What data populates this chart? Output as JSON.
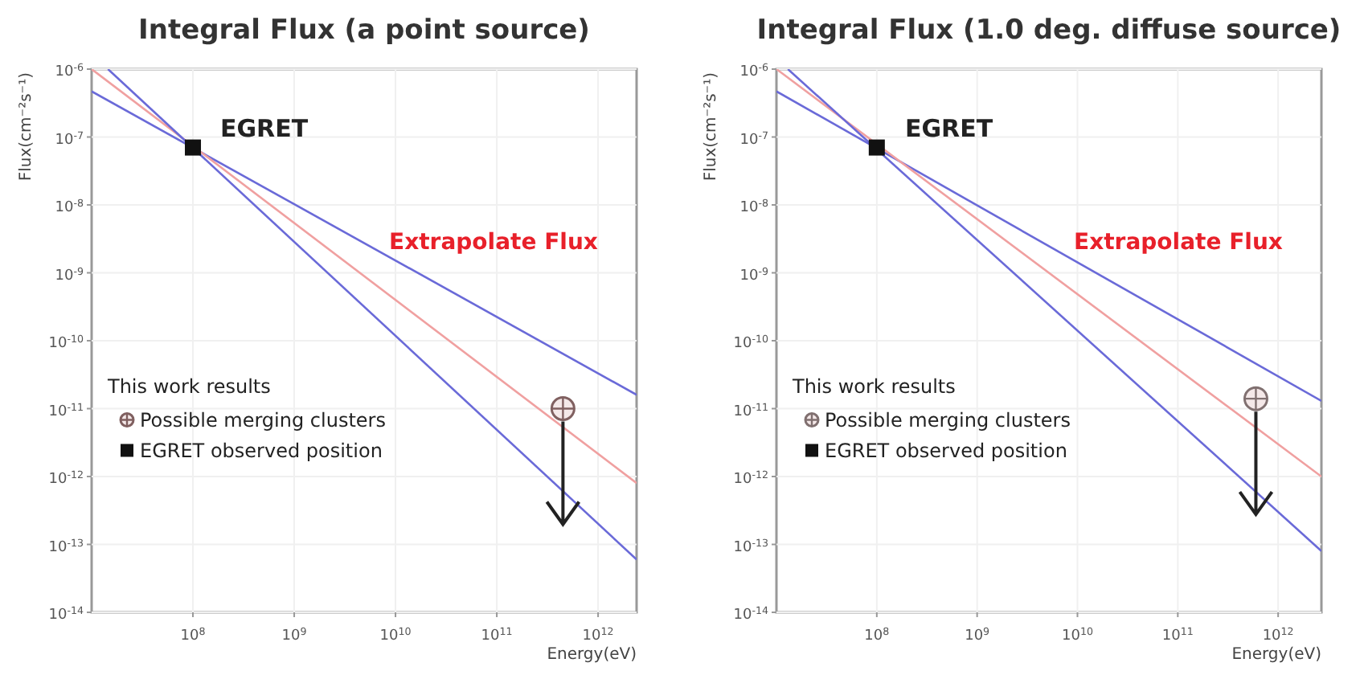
{
  "chart_data": [
    {
      "type": "line",
      "title": "Integral Flux (a point source)",
      "xlabel": "Energy(eV)",
      "ylabel": "Flux(cm⁻²s⁻¹)",
      "log": "xy",
      "grid": true,
      "legend": "left",
      "legend_title": "This work results",
      "xlim": [
        10000000.0,
        2400000000000.0
      ],
      "ylim": [
        1e-14,
        1e-06
      ],
      "xticks": [
        {
          "value": 100000000.0,
          "label": "10$^{8}$"
        },
        {
          "value": 1000000000.0,
          "label": "10$^{9}$"
        },
        {
          "value": 10000000000.0,
          "label": "10$^{10}$"
        },
        {
          "value": 100000000000.0,
          "label": "10$^{11}$"
        },
        {
          "value": 1000000000000.0,
          "label": "10$^{12}$"
        }
      ],
      "yticks": [
        {
          "value": 1e-06,
          "label": "10$^{-6}$"
        },
        {
          "value": 1e-07,
          "label": "10$^{-7}$"
        },
        {
          "value": 1e-08,
          "label": "10$^{-8}$"
        },
        {
          "value": 1e-09,
          "label": "10$^{-9}$"
        },
        {
          "value": 1e-10,
          "label": "10$^{-10}$"
        },
        {
          "value": 1e-11,
          "label": "10$^{-11}$"
        },
        {
          "value": 1e-12,
          "label": "10$^{-12}$"
        },
        {
          "value": 1e-13,
          "label": "10$^{-13}$"
        },
        {
          "value": 1e-14,
          "label": "10$^{-14}$"
        }
      ],
      "series": [
        {
          "type": "line",
          "color": "#6a6ad8",
          "x": [
            10000000.0,
            2400000000000.0
          ],
          "values": [
            4.7e-07,
            1.6e-11
          ]
        },
        {
          "type": "line",
          "color": "#f0a0a0",
          "x": [
            10000000.0,
            2400000000000.0
          ],
          "values": [
            1e-06,
            8e-13
          ]
        },
        {
          "type": "line",
          "color": "#6a6ad8",
          "x": [
            14500000.0,
            2400000000000.0
          ],
          "values": [
            1e-06,
            6e-14
          ]
        },
        {
          "type": "scatter",
          "name": "Possible merging clusters",
          "color": "#806060",
          "marker": "circle",
          "x": [
            450000000000.0
          ],
          "values": [
            1e-11
          ]
        },
        {
          "type": "scatter",
          "name": "EGRET observed position",
          "color": "#111111",
          "marker": "square",
          "x": [
            100000000.0
          ],
          "values": [
            7e-08
          ]
        }
      ],
      "annotations": [
        "EGRET",
        "Extrapolate Flux"
      ]
    },
    {
      "type": "line",
      "title": "Integral Flux (1.0 deg. diffuse source)",
      "xlabel": "Energy(eV)",
      "ylabel": "Flux(cm⁻²s⁻¹)",
      "log": "xy",
      "grid": true,
      "legend": "left",
      "legend_title": "This work results",
      "xlim": [
        10000000.0,
        2700000000000.0
      ],
      "ylim": [
        1e-14,
        1e-06
      ],
      "xticks": [
        {
          "value": 100000000.0,
          "label": "10$^{8}$"
        },
        {
          "value": 1000000000.0,
          "label": "10$^{9}$"
        },
        {
          "value": 10000000000.0,
          "label": "10$^{10}$"
        },
        {
          "value": 100000000000.0,
          "label": "10$^{11}$"
        },
        {
          "value": 1000000000000.0,
          "label": "10$^{12}$"
        }
      ],
      "yticks": [
        {
          "value": 1e-06,
          "label": "10$^{-6}$"
        },
        {
          "value": 1e-07,
          "label": "10$^{-7}$"
        },
        {
          "value": 1e-08,
          "label": "10$^{-8}$"
        },
        {
          "value": 1e-09,
          "label": "10$^{-9}$"
        },
        {
          "value": 1e-10,
          "label": "10$^{-10}$"
        },
        {
          "value": 1e-11,
          "label": "10$^{-11}$"
        },
        {
          "value": 1e-12,
          "label": "10$^{-12}$"
        },
        {
          "value": 1e-13,
          "label": "10$^{-13}$"
        },
        {
          "value": 1e-14,
          "label": "10$^{-14}$"
        }
      ],
      "series": [
        {
          "type": "line",
          "color": "#6a6ad8",
          "x": [
            10000000.0,
            2700000000000.0
          ],
          "values": [
            4.7e-07,
            1.3e-11
          ]
        },
        {
          "type": "line",
          "color": "#f0a0a0",
          "x": [
            10000000.0,
            2700000000000.0
          ],
          "values": [
            1e-06,
            1e-12
          ]
        },
        {
          "type": "line",
          "color": "#6a6ad8",
          "x": [
            13000000.0,
            2700000000000.0
          ],
          "values": [
            1e-06,
            8e-14
          ]
        },
        {
          "type": "scatter",
          "name": "Possible merging clusters",
          "color": "#807070",
          "marker": "circle",
          "x": [
            600000000000.0
          ],
          "values": [
            1.4e-11
          ]
        },
        {
          "type": "scatter",
          "name": "EGRET observed position",
          "color": "#111111",
          "marker": "square",
          "x": [
            100000000.0
          ],
          "values": [
            7e-08
          ]
        }
      ],
      "annotations": [
        "EGRET",
        "Extrapolate Flux"
      ]
    }
  ]
}
